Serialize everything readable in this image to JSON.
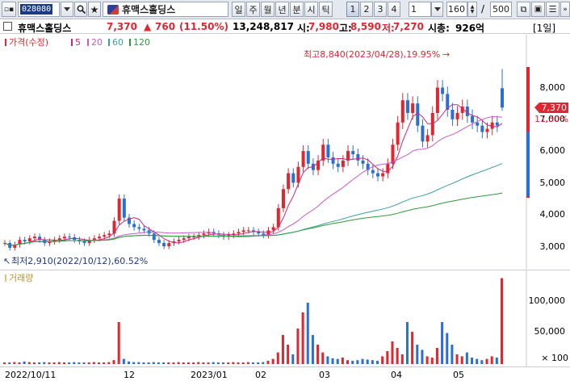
{
  "toolbar": {
    "code": "028080",
    "period_buttons": [
      "일",
      "주",
      "월",
      "년",
      "분",
      "시",
      "틱"
    ],
    "number_buttons": [
      "1",
      "2",
      "3",
      "4"
    ],
    "interval_value": "1",
    "count_value": "160",
    "slash": "/",
    "total_value": "500",
    "stock_name": "휴맥스홀딩스"
  },
  "info": {
    "stock_name": "휴맥스홀딩스",
    "price": "7,370",
    "change_arrow": "▲",
    "change": "760",
    "change_pct": "(11.50%)",
    "volume": "13,248,817",
    "open_label": "시:",
    "open": "7,980",
    "high_label": "고:",
    "high": "8,590",
    "low_label": "저:",
    "low": "7,270",
    "mcap_label": "시총:",
    "mcap": "926억",
    "period_badge": "[1일]"
  },
  "legend": {
    "price_label": "가격(수정)",
    "ma": [
      "5",
      "20",
      "60",
      "120"
    ]
  },
  "annotations": {
    "high": "최고8,840(2023/04/28),19.95%",
    "low": "최저2,910(2022/10/12),60.52%"
  },
  "price_axis": {
    "ticks": [
      "8,000",
      "7,000",
      "6,000",
      "5,000",
      "4,000",
      "3,000"
    ],
    "current_price_tag": "7,370",
    "current_pct_tag": "11.50%"
  },
  "volume_pane": {
    "label": "거래량",
    "ticks": [
      "100,000",
      "50,000",
      "× 100"
    ]
  },
  "x_axis": {
    "labels": [
      "2022/10/11",
      "12",
      "2023/01",
      "02",
      "03",
      "04",
      "05"
    ]
  },
  "colors": {
    "up": "#e0262f",
    "down": "#2a6fd6",
    "ma5": "#d0247a",
    "ma20": "#c85ac8",
    "ma60": "#3aa0a0",
    "ma120": "#2d9a3a"
  },
  "chart_data": {
    "type": "candlestick",
    "x_range": [
      "2022/10/11",
      "2023/05/xx"
    ],
    "y_range": [
      2700,
      9000
    ],
    "highlights": {
      "high": 8840,
      "low": 2910
    },
    "last": {
      "open": 7980,
      "high": 8590,
      "low": 7270,
      "close": 7370
    },
    "close_trend": [
      3100,
      2950,
      3050,
      3200,
      3150,
      3250,
      3300,
      3200,
      3100,
      3150,
      3200,
      3250,
      3300,
      3280,
      3200,
      3150,
      3100,
      3200,
      3250,
      3300,
      3350,
      3400,
      3800,
      4500,
      3900,
      3700,
      3600,
      3550,
      3500,
      3400,
      3200,
      3100,
      3000,
      3100,
      3150,
      3200,
      3250,
      3300,
      3300,
      3350,
      3400,
      3450,
      3400,
      3350,
      3300,
      3350,
      3400,
      3450,
      3500,
      3500,
      3450,
      3400,
      3350,
      3500,
      3600,
      4200,
      4800,
      5300,
      5000,
      5500,
      6000,
      5600,
      5400,
      5700,
      6200,
      5800,
      5600,
      5500,
      5700,
      6000,
      5900,
      5700,
      5600,
      5400,
      5300,
      5200,
      5300,
      5600,
      6200,
      6900,
      7600,
      7200,
      7500,
      6800,
      6300,
      6500,
      7200,
      8000,
      7800,
      7300,
      7000,
      7200,
      7400,
      7100,
      6900,
      6800,
      6600,
      6700,
      6900,
      6800,
      7370
    ],
    "volume_trend": [
      2,
      2,
      3,
      2,
      4,
      3,
      2,
      2,
      3,
      2,
      2,
      3,
      2,
      2,
      3,
      2,
      2,
      2,
      3,
      2,
      2,
      3,
      6,
      65,
      8,
      4,
      3,
      3,
      2,
      2,
      3,
      2,
      2,
      2,
      2,
      3,
      2,
      2,
      2,
      3,
      2,
      2,
      3,
      2,
      2,
      2,
      3,
      2,
      2,
      3,
      2,
      2,
      3,
      5,
      8,
      18,
      45,
      30,
      15,
      55,
      80,
      95,
      45,
      30,
      18,
      12,
      9,
      8,
      10,
      6,
      5,
      6,
      8,
      7,
      6,
      5,
      12,
      20,
      35,
      25,
      15,
      65,
      50,
      30,
      22,
      12,
      10,
      25,
      65,
      48,
      30,
      15,
      12,
      18,
      10,
      8,
      6,
      8,
      12,
      10,
      133
    ]
  }
}
